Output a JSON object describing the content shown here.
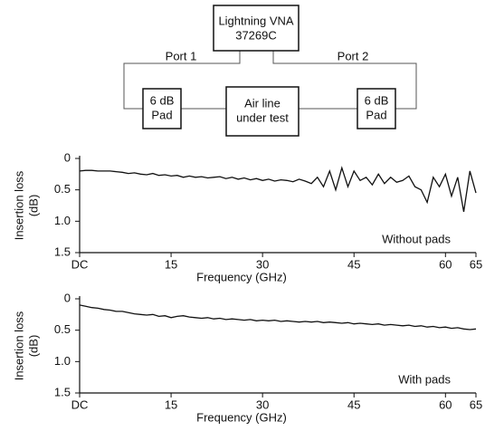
{
  "diagram": {
    "nodes": [
      {
        "label": [
          "Lightning VNA",
          "37269C"
        ]
      },
      {
        "label": [
          "6 dB",
          "Pad"
        ]
      },
      {
        "label": [
          "Air line",
          "under test"
        ]
      },
      {
        "label": [
          "6 dB",
          "Pad"
        ]
      }
    ],
    "edges": [
      {
        "label": "Port 1"
      },
      {
        "label": "Port 2"
      }
    ]
  },
  "chart_data": [
    {
      "type": "line",
      "ylabel": [
        "Insertion loss",
        "(dB)"
      ],
      "xlabel": "Frequency (GHz)",
      "annotation": "Without pads",
      "xlim": [
        0,
        65
      ],
      "xticks": [
        {
          "value": 0,
          "label": "DC"
        },
        15,
        30,
        45,
        60,
        65
      ],
      "ylim": [
        0,
        1.5
      ],
      "y_reversed": true,
      "yticks": [
        0,
        0.5,
        {
          "value": 1,
          "label": "1.0"
        },
        1.5
      ],
      "x": [
        0,
        1,
        2,
        3,
        4,
        5,
        6,
        7,
        8,
        9,
        10,
        11,
        12,
        13,
        14,
        15,
        16,
        17,
        18,
        19,
        20,
        21,
        22,
        23,
        24,
        25,
        26,
        27,
        28,
        29,
        30,
        31,
        32,
        33,
        34,
        35,
        36,
        37,
        38,
        39,
        40,
        41,
        42,
        43,
        44,
        45,
        46,
        47,
        48,
        49,
        50,
        51,
        52,
        53,
        54,
        55,
        56,
        57,
        58,
        59,
        60,
        61,
        62,
        63,
        64,
        65
      ],
      "series": [
        {
          "color": "#111111",
          "values": [
            0.2,
            0.19,
            0.19,
            0.2,
            0.2,
            0.2,
            0.21,
            0.22,
            0.24,
            0.23,
            0.25,
            0.26,
            0.24,
            0.27,
            0.26,
            0.28,
            0.27,
            0.3,
            0.28,
            0.3,
            0.29,
            0.31,
            0.3,
            0.29,
            0.32,
            0.3,
            0.33,
            0.31,
            0.34,
            0.32,
            0.35,
            0.33,
            0.36,
            0.34,
            0.35,
            0.37,
            0.33,
            0.36,
            0.4,
            0.3,
            0.45,
            0.2,
            0.5,
            0.15,
            0.45,
            0.2,
            0.35,
            0.3,
            0.42,
            0.25,
            0.4,
            0.3,
            0.38,
            0.35,
            0.28,
            0.45,
            0.5,
            0.7,
            0.3,
            0.45,
            0.25,
            0.6,
            0.3,
            0.85,
            0.2,
            0.55
          ]
        }
      ]
    },
    {
      "type": "line",
      "ylabel": [
        "Insertion loss",
        "(dB)"
      ],
      "xlabel": "Frequency (GHz)",
      "annotation": "With pads",
      "xlim": [
        0,
        65
      ],
      "xticks": [
        {
          "value": 0,
          "label": "DC"
        },
        15,
        30,
        45,
        60,
        65
      ],
      "ylim": [
        0,
        1.5
      ],
      "y_reversed": true,
      "yticks": [
        0,
        0.5,
        {
          "value": 1,
          "label": "1.0"
        },
        1.5
      ],
      "x": [
        0,
        1,
        2,
        3,
        4,
        5,
        6,
        7,
        8,
        9,
        10,
        11,
        12,
        13,
        14,
        15,
        16,
        17,
        18,
        19,
        20,
        21,
        22,
        23,
        24,
        25,
        26,
        27,
        28,
        29,
        30,
        31,
        32,
        33,
        34,
        35,
        36,
        37,
        38,
        39,
        40,
        41,
        42,
        43,
        44,
        45,
        46,
        47,
        48,
        49,
        50,
        51,
        52,
        53,
        54,
        55,
        56,
        57,
        58,
        59,
        60,
        61,
        62,
        63,
        64,
        65
      ],
      "series": [
        {
          "color": "#111111",
          "values": [
            0.1,
            0.12,
            0.14,
            0.15,
            0.17,
            0.18,
            0.2,
            0.2,
            0.22,
            0.24,
            0.25,
            0.26,
            0.25,
            0.28,
            0.27,
            0.3,
            0.28,
            0.27,
            0.29,
            0.3,
            0.31,
            0.3,
            0.32,
            0.31,
            0.33,
            0.32,
            0.33,
            0.34,
            0.33,
            0.35,
            0.34,
            0.35,
            0.34,
            0.36,
            0.35,
            0.36,
            0.37,
            0.36,
            0.37,
            0.36,
            0.38,
            0.37,
            0.38,
            0.39,
            0.38,
            0.4,
            0.39,
            0.4,
            0.41,
            0.4,
            0.42,
            0.41,
            0.42,
            0.43,
            0.42,
            0.44,
            0.43,
            0.45,
            0.44,
            0.46,
            0.45,
            0.47,
            0.46,
            0.48,
            0.49,
            0.48
          ]
        }
      ]
    }
  ]
}
